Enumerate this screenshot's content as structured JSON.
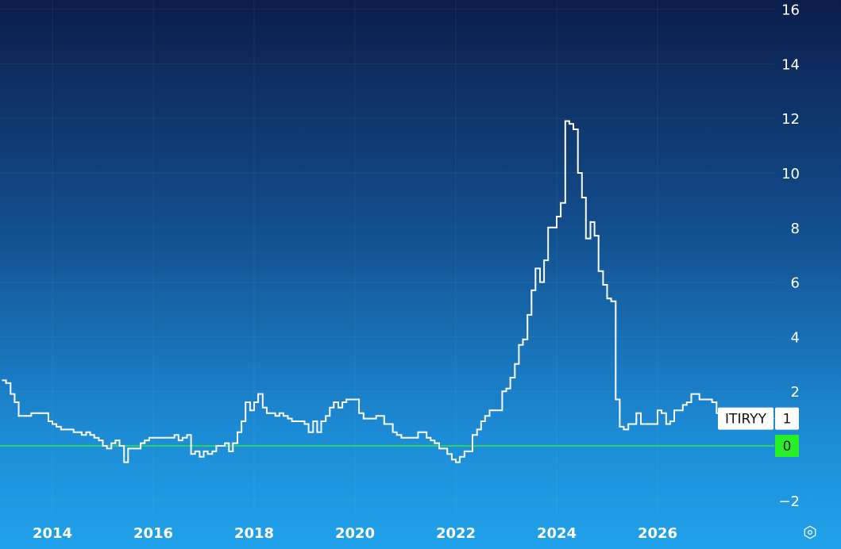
{
  "chart_data": {
    "type": "line",
    "series": [
      {
        "name": "ITIRYY",
        "color": "#ffffff",
        "step": true,
        "points": [
          [
            2013.0,
            2.4
          ],
          [
            2013.08,
            2.3
          ],
          [
            2013.17,
            1.9
          ],
          [
            2013.25,
            1.6
          ],
          [
            2013.33,
            1.1
          ],
          [
            2013.5,
            1.1
          ],
          [
            2013.58,
            1.2
          ],
          [
            2013.67,
            1.2
          ],
          [
            2013.83,
            1.2
          ],
          [
            2013.92,
            0.9
          ],
          [
            2014.0,
            0.8
          ],
          [
            2014.08,
            0.7
          ],
          [
            2014.17,
            0.6
          ],
          [
            2014.25,
            0.6
          ],
          [
            2014.33,
            0.6
          ],
          [
            2014.42,
            0.5
          ],
          [
            2014.5,
            0.5
          ],
          [
            2014.58,
            0.4
          ],
          [
            2014.67,
            0.5
          ],
          [
            2014.75,
            0.4
          ],
          [
            2014.83,
            0.3
          ],
          [
            2014.92,
            0.2
          ],
          [
            2015.0,
            0.0
          ],
          [
            2015.08,
            -0.1
          ],
          [
            2015.17,
            0.1
          ],
          [
            2015.25,
            0.2
          ],
          [
            2015.33,
            0.0
          ],
          [
            2015.42,
            -0.6
          ],
          [
            2015.5,
            -0.1
          ],
          [
            2015.58,
            -0.1
          ],
          [
            2015.67,
            -0.1
          ],
          [
            2015.75,
            0.1
          ],
          [
            2015.83,
            0.2
          ],
          [
            2015.92,
            0.3
          ],
          [
            2016.0,
            0.3
          ],
          [
            2016.08,
            0.3
          ],
          [
            2016.17,
            0.3
          ],
          [
            2016.25,
            0.3
          ],
          [
            2016.33,
            0.3
          ],
          [
            2016.42,
            0.4
          ],
          [
            2016.5,
            0.2
          ],
          [
            2016.58,
            0.3
          ],
          [
            2016.67,
            0.4
          ],
          [
            2016.75,
            -0.3
          ],
          [
            2016.83,
            -0.2
          ],
          [
            2016.92,
            -0.4
          ],
          [
            2017.0,
            -0.2
          ],
          [
            2017.08,
            -0.3
          ],
          [
            2017.17,
            -0.2
          ],
          [
            2017.25,
            0.0
          ],
          [
            2017.33,
            0.0
          ],
          [
            2017.42,
            0.1
          ],
          [
            2017.5,
            -0.2
          ],
          [
            2017.58,
            0.1
          ],
          [
            2017.67,
            0.5
          ],
          [
            2017.75,
            0.9
          ],
          [
            2017.83,
            1.6
          ],
          [
            2017.92,
            1.3
          ],
          [
            2018.0,
            1.6
          ],
          [
            2018.08,
            1.9
          ],
          [
            2018.17,
            1.4
          ],
          [
            2018.25,
            1.2
          ],
          [
            2018.33,
            1.2
          ],
          [
            2018.42,
            1.1
          ],
          [
            2018.5,
            1.2
          ],
          [
            2018.58,
            1.1
          ],
          [
            2018.67,
            1.0
          ],
          [
            2018.75,
            0.9
          ],
          [
            2018.83,
            0.9
          ],
          [
            2018.92,
            0.9
          ],
          [
            2019.0,
            0.8
          ],
          [
            2019.08,
            0.5
          ],
          [
            2019.17,
            0.9
          ],
          [
            2019.25,
            0.5
          ],
          [
            2019.33,
            0.9
          ],
          [
            2019.42,
            1.1
          ],
          [
            2019.5,
            1.4
          ],
          [
            2019.58,
            1.6
          ],
          [
            2019.67,
            1.4
          ],
          [
            2019.75,
            1.6
          ],
          [
            2019.83,
            1.7
          ],
          [
            2019.92,
            1.7
          ],
          [
            2020.0,
            1.7
          ],
          [
            2020.08,
            1.2
          ],
          [
            2020.17,
            1.0
          ],
          [
            2020.25,
            1.0
          ],
          [
            2020.33,
            1.0
          ],
          [
            2020.42,
            1.1
          ],
          [
            2020.5,
            1.1
          ],
          [
            2020.58,
            0.8
          ],
          [
            2020.67,
            0.8
          ],
          [
            2020.75,
            0.5
          ],
          [
            2020.83,
            0.4
          ],
          [
            2020.92,
            0.3
          ],
          [
            2021.0,
            0.3
          ],
          [
            2021.08,
            0.3
          ],
          [
            2021.17,
            0.3
          ],
          [
            2021.25,
            0.5
          ],
          [
            2021.33,
            0.5
          ],
          [
            2021.42,
            0.3
          ],
          [
            2021.5,
            0.2
          ],
          [
            2021.58,
            0.1
          ],
          [
            2021.67,
            -0.1
          ],
          [
            2021.75,
            -0.1
          ],
          [
            2021.83,
            -0.3
          ],
          [
            2021.92,
            -0.5
          ],
          [
            2022.0,
            -0.6
          ],
          [
            2022.08,
            -0.4
          ],
          [
            2022.17,
            -0.2
          ],
          [
            2022.25,
            -0.2
          ],
          [
            2022.33,
            0.4
          ],
          [
            2022.42,
            0.6
          ],
          [
            2022.5,
            0.9
          ],
          [
            2022.58,
            1.1
          ],
          [
            2022.67,
            1.3
          ],
          [
            2022.75,
            1.3
          ],
          [
            2022.83,
            1.3
          ],
          [
            2022.92,
            2.0
          ],
          [
            2023.0,
            2.1
          ],
          [
            2023.08,
            2.5
          ],
          [
            2023.17,
            3.0
          ],
          [
            2023.25,
            3.7
          ],
          [
            2023.33,
            3.9
          ],
          [
            2023.42,
            4.8
          ],
          [
            2023.5,
            5.7
          ],
          [
            2023.58,
            6.5
          ],
          [
            2023.67,
            6.0
          ],
          [
            2023.75,
            6.8
          ],
          [
            2023.83,
            8.0
          ],
          [
            2023.92,
            8.0
          ],
          [
            2024.0,
            8.4
          ],
          [
            2024.08,
            8.9
          ],
          [
            2024.17,
            11.9
          ],
          [
            2024.25,
            11.8
          ],
          [
            2024.33,
            11.6
          ],
          [
            2024.42,
            10.0
          ],
          [
            2024.5,
            9.1
          ],
          [
            2024.58,
            7.6
          ],
          [
            2024.67,
            8.2
          ],
          [
            2024.75,
            7.7
          ],
          [
            2024.83,
            6.4
          ],
          [
            2024.92,
            5.9
          ],
          [
            2025.0,
            5.4
          ],
          [
            2025.08,
            5.3
          ],
          [
            2025.17,
            1.7
          ],
          [
            2025.25,
            0.7
          ],
          [
            2025.33,
            0.6
          ],
          [
            2025.42,
            0.8
          ],
          [
            2025.5,
            0.8
          ],
          [
            2025.58,
            1.2
          ],
          [
            2025.67,
            0.8
          ],
          [
            2025.75,
            0.8
          ],
          [
            2025.83,
            0.8
          ],
          [
            2025.92,
            0.8
          ],
          [
            2026.0,
            1.3
          ],
          [
            2026.08,
            1.2
          ],
          [
            2026.17,
            0.8
          ],
          [
            2026.25,
            0.9
          ],
          [
            2026.33,
            1.3
          ],
          [
            2026.42,
            1.3
          ],
          [
            2026.5,
            1.5
          ],
          [
            2026.58,
            1.6
          ],
          [
            2026.67,
            1.9
          ],
          [
            2026.75,
            1.9
          ],
          [
            2026.83,
            1.7
          ],
          [
            2026.92,
            1.7
          ],
          [
            2027.0,
            1.7
          ],
          [
            2027.08,
            1.6
          ],
          [
            2027.17,
            1.2
          ],
          [
            2027.25,
            1.1
          ],
          [
            2027.33,
            1.2
          ],
          [
            2027.42,
            1.0
          ]
        ]
      }
    ],
    "baseline": {
      "value": 0,
      "color": "#2ee83a"
    },
    "x_ticks": [
      "2014",
      "2016",
      "2018",
      "2020",
      "2022",
      "2024",
      "2026"
    ],
    "y_ticks": [
      "16",
      "14",
      "12",
      "10",
      "8",
      "6",
      "4",
      "2",
      "0",
      "−2"
    ],
    "xlim": [
      2013.0,
      2028.0
    ],
    "ylim": [
      -3.0,
      16.5
    ],
    "grid": true,
    "last_value_label": {
      "series": "ITIRYY",
      "value": "1"
    },
    "zero_label": {
      "value": "0",
      "color": "#26ef26"
    }
  },
  "controls": {
    "settings_icon": "settings-hexagon-icon"
  }
}
